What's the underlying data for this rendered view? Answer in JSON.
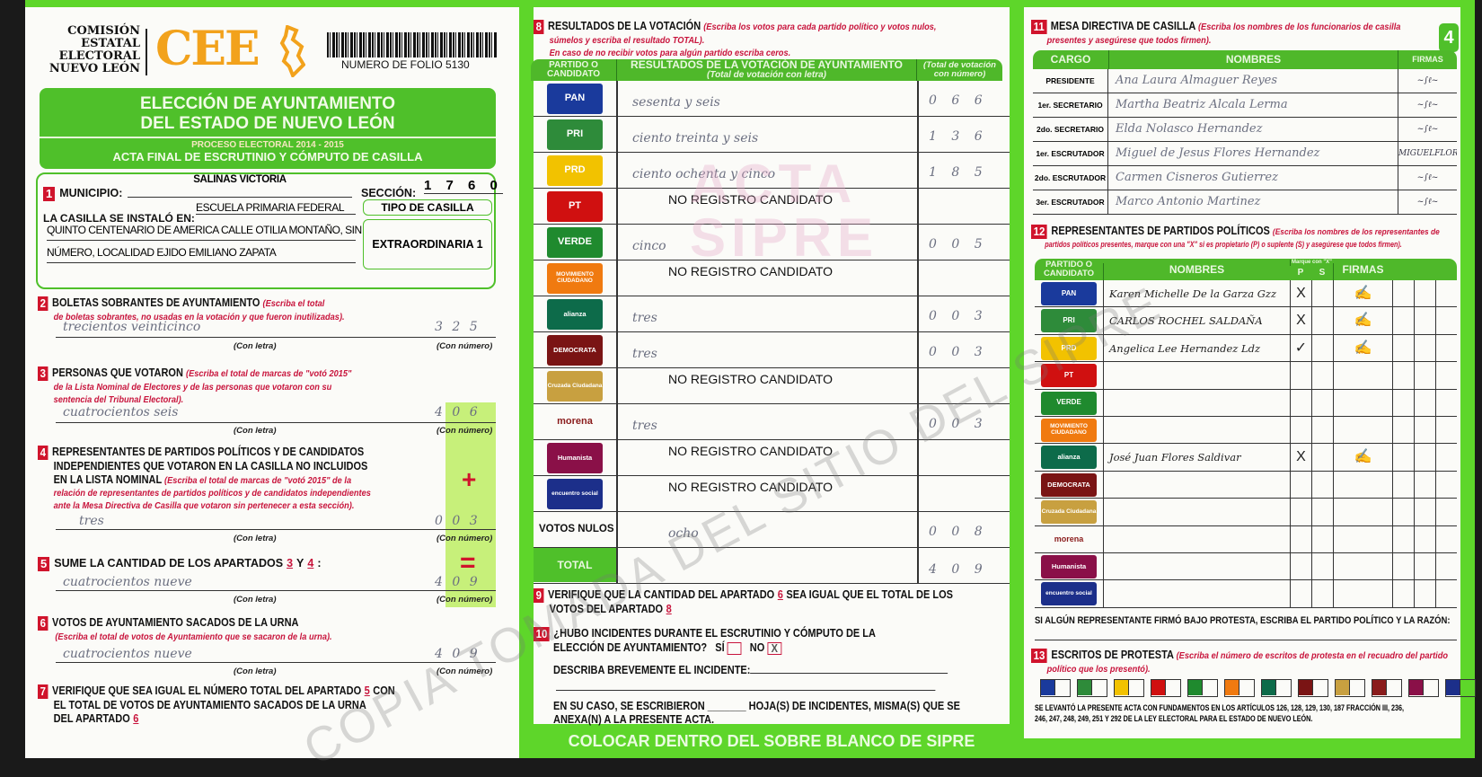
{
  "header": {
    "org": [
      "COMISIÓN",
      "ESTATAL",
      "ELECTORAL",
      "NUEVO LEÓN"
    ],
    "logo": "CEE",
    "folio": "NUMERO DE FOLIO 5130",
    "badge": "4"
  },
  "banner": {
    "title1": "ELECCIÓN DE AYUNTAMIENTO",
    "title2": "DEL ESTADO DE NUEVO LEÓN",
    "process": "PROCESO ELECTORAL 2014 - 2015",
    "acta": "ACTA FINAL DE ESCRUTINIO Y CÓMPUTO DE CASILLA"
  },
  "s1": {
    "num": "1",
    "municipio_label": "MUNICIPIO:",
    "municipio": "SALINAS VICTORIA",
    "seccion_label": "SECCIÓN:",
    "seccion": "1 7 6 0",
    "installed_label": "LA CASILLA SE INSTALÓ EN:",
    "address1": "ESCUELA PRIMARIA FEDERAL",
    "address2": "QUINTO CENTENARIO DE AMERICA CALLE OTILIA MONTAÑO, SIN",
    "address3": "NÚMERO, LOCALIDAD EJIDO EMILIANO ZAPATA",
    "tipo_label": "TIPO DE CASILLA",
    "tipo": "EXTRAORDINARIA 1"
  },
  "labels": {
    "con_letra": "(Con letra)",
    "con_numero": "(Con número)",
    "plus": "+",
    "equals": "="
  },
  "s2": {
    "num": "2",
    "title": "BOLETAS SOBRANTES DE AYUNTAMIENTO",
    "inst1": "(Escriba el total",
    "inst2": "de boletas sobrantes, no usadas en la votación y que fueron inutilizadas).",
    "letra": "trecientos veinticinco",
    "numero": "3 2 5"
  },
  "s3": {
    "num": "3",
    "title": "PERSONAS QUE VOTARON",
    "inst1": "(Escriba el total de marcas de \"votó 2015\"",
    "inst2": "de la Lista Nominal de Electores y de las personas que votaron con su",
    "inst3": "sentencia del Tribunal Electoral).",
    "letra": "cuatrocientos seis",
    "numero": "4 0 6"
  },
  "s4": {
    "num": "4",
    "title1": "REPRESENTANTES DE PARTIDOS POLÍTICOS Y DE CANDIDATOS",
    "title2": "INDEPENDIENTES QUE VOTARON EN LA CASILLA NO INCLUIDOS",
    "title3": "EN LA LISTA NOMINAL",
    "inst1": "(Escriba el total de marcas de \"votó 2015\" de la",
    "inst2": "relación de representantes de partidos políticos y de candidatos independientes",
    "inst3": "ante la Mesa Directiva de Casilla que votaron sin pertenecer a esta sección).",
    "letra": "tres",
    "numero": "0 0 3"
  },
  "s5": {
    "num": "5",
    "title": "SUME LA CANTIDAD DE LOS APARTADOS",
    "a": "3",
    "y": "Y",
    "b": "4",
    "letra": "cuatrocientos nueve",
    "numero": "4 0 9"
  },
  "s6": {
    "num": "6",
    "title": "VOTOS DE AYUNTAMIENTO SACADOS DE LA URNA",
    "inst": "(Escriba el total de votos de Ayuntamiento que se sacaron de la urna).",
    "letra": "cuatrocientos nueve",
    "numero": "4 0 9"
  },
  "s7": {
    "num": "7",
    "t1": "VERIFIQUE QUE SEA IGUAL EL NÚMERO TOTAL DEL APARTADO",
    "a": "5",
    "t1b": "CON",
    "t2": "EL TOTAL DE VOTOS DE AYUNTAMIENTO SACADOS DE LA URNA",
    "t3": "DEL APARTADO",
    "b": "6"
  },
  "s8": {
    "num": "8",
    "title": "RESULTADOS DE LA VOTACIÓN",
    "inst1": "(Escriba los votos para cada partido político y votos nulos,",
    "inst2": "súmelos y escriba el resultado TOTAL).",
    "inst3": "En caso de no recibir votos para algún partido escriba ceros.",
    "col1": "PARTIDO O CANDIDATO",
    "col2": "RESULTADOS DE LA VOTACIÓN DE AYUNTAMIENTO",
    "col2sub": "(Total de votación con letra)",
    "col3": "(Total de votación con número)",
    "rows": [
      {
        "party": "PAN",
        "color": "#1a3a9c",
        "letra": "sesenta y seis",
        "numero": "0 6 6"
      },
      {
        "party": "PRI",
        "color": "#2e8b3a",
        "letra": "ciento treinta y seis",
        "numero": "1 3 6"
      },
      {
        "party": "PRD",
        "color": "#f2c200",
        "letra": "ciento ochenta y cinco",
        "numero": "1 8 5"
      },
      {
        "party": "PT",
        "color": "#d01010",
        "letra": "NO REGISTRO CANDIDATO",
        "numero": ""
      },
      {
        "party": "VERDE",
        "color": "#1f8a2e",
        "letra": "cinco",
        "numero": "0 0 5"
      },
      {
        "party": "MOVIMIENTO CIUDADANO",
        "color": "#f07a10",
        "letra": "NO REGISTRO CANDIDATO",
        "numero": ""
      },
      {
        "party": "alianza",
        "color": "#0d6b4a",
        "letra": "tres",
        "numero": "0 0 3"
      },
      {
        "party": "DEMOCRATA",
        "color": "#7a1414",
        "letra": "tres",
        "numero": "0 0 3"
      },
      {
        "party": "Cruzada Ciudadana",
        "color": "#c8a040",
        "letra": "NO REGISTRO CANDIDATO",
        "numero": ""
      },
      {
        "party": "morena",
        "color": "#8a1c1c",
        "letra": "tres",
        "numero": "0 0 3"
      },
      {
        "party": "Humanista",
        "color": "#8a1048",
        "letra": "NO REGISTRO CANDIDATO",
        "numero": ""
      },
      {
        "party": "encuentro social",
        "color": "#1c2f8a",
        "letra": "NO REGISTRO CANDIDATO",
        "numero": ""
      }
    ],
    "nulos_label": "VOTOS NULOS",
    "nulos_letra": "ocho",
    "nulos_numero": "0 0 8",
    "total_label": "TOTAL",
    "total_numero": "4 0 9"
  },
  "s9": {
    "num": "9",
    "t1": "VERIFIQUE QUE LA CANTIDAD DEL APARTADO",
    "a": "6",
    "t1b": "SEA IGUAL QUE EL TOTAL DE LOS",
    "t2": "VOTOS DEL APARTADO",
    "b": "8"
  },
  "s10": {
    "num": "10",
    "t1": "¿HUBO INCIDENTES DURANTE EL ESCRUTINIO Y CÓMPUTO DE LA",
    "t2": "ELECCIÓN DE AYUNTAMIENTO?",
    "si": "SÍ",
    "no": "NO",
    "no_mark": "X",
    "describe": "DESCRIBA BREVEMENTE EL INCIDENTE:",
    "hojas1": "EN SU CASO, SE ESCRIBIERON _______ HOJA(S) DE INCIDENTES, MISMA(S) QUE SE",
    "hojas2": "ANEXA(N) A LA PRESENTE ACTA."
  },
  "footer": "COLOCAR DENTRO DEL SOBRE BLANCO DE SIPRE",
  "s11": {
    "num": "11",
    "title": "MESA DIRECTIVA DE CASILLA",
    "inst1": "(Escriba los nombres de los funcionarios de casilla",
    "inst2": "presentes y asegúrese que todos firmen).",
    "col_cargo": "CARGO",
    "col_nombres": "NOMBRES",
    "col_firmas": "FIRMAS",
    "rows": [
      {
        "cargo": "PRESIDENTE",
        "nombre": "Ana Laura Almaguer Reyes",
        "firma": "signed"
      },
      {
        "cargo": "1er. SECRETARIO",
        "nombre": "Martha Beatriz Alcala Lerma",
        "firma": "signed"
      },
      {
        "cargo": "2do. SECRETARIO",
        "nombre": "Elda Nolasco Hernandez",
        "firma": "signed"
      },
      {
        "cargo": "1er. ESCRUTADOR",
        "nombre": "Miguel de Jesus Flores Hernandez",
        "firma": "MIGUELFLORES"
      },
      {
        "cargo": "2do. ESCRUTADOR",
        "nombre": "Carmen Cisneros Gutierrez",
        "firma": "signed"
      },
      {
        "cargo": "3er. ESCRUTADOR",
        "nombre": "Marco Antonio Martinez",
        "firma": "signed"
      }
    ]
  },
  "s12": {
    "num": "12",
    "title": "REPRESENTANTES DE PARTIDOS POLÍTICOS",
    "inst1": "(Escriba los nombres de los representantes de",
    "inst2": "partidos políticos presentes, marque con una \"X\" si es propietario (P) o suplente (S) y asegúrese que todos firmen).",
    "col_partido": "PARTIDO O CANDIDATO",
    "col_nombres": "NOMBRES",
    "marque": "Marque con \"X\"",
    "p": "P",
    "s": "S",
    "col_firmas": "FIRMAS",
    "rows": [
      {
        "party": "PAN",
        "nombre": "Karen Michelle De la Garza Gzz",
        "p": "X",
        "s": "",
        "firma": "signed"
      },
      {
        "party": "PRI",
        "nombre": "CARLOS ROCHEL SALDAÑA",
        "p": "X",
        "s": "",
        "firma": "signed"
      },
      {
        "party": "PRD",
        "nombre": "Angelica Lee Hernandez Ldz",
        "p": "✓",
        "s": "",
        "firma": "signed"
      },
      {
        "party": "PT",
        "nombre": "",
        "p": "",
        "s": "",
        "firma": ""
      },
      {
        "party": "VERDE",
        "nombre": "",
        "p": "",
        "s": "",
        "firma": ""
      },
      {
        "party": "MOVIMIENTO CIUDADANO",
        "nombre": "",
        "p": "",
        "s": "",
        "firma": ""
      },
      {
        "party": "alianza",
        "nombre": "José Juan Flores Saldivar",
        "p": "X",
        "s": "",
        "firma": "signed"
      },
      {
        "party": "DEMOCRATA",
        "nombre": "",
        "p": "",
        "s": "",
        "firma": ""
      },
      {
        "party": "Cruzada Ciudadana",
        "nombre": "",
        "p": "",
        "s": "",
        "firma": ""
      },
      {
        "party": "morena",
        "nombre": "",
        "p": "",
        "s": "",
        "firma": ""
      },
      {
        "party": "Humanista",
        "nombre": "",
        "p": "",
        "s": "",
        "firma": ""
      },
      {
        "party": "encuentro social",
        "nombre": "",
        "p": "",
        "s": "",
        "firma": ""
      }
    ],
    "protesta": "SI ALGÚN REPRESENTANTE FIRMÓ BAJO PROTESTA, ESCRIBA EL PARTIDO POLÍTICO Y LA RAZÓN:"
  },
  "s13": {
    "num": "13",
    "title": "ESCRITOS DE PROTESTA",
    "inst1": "(Escriba el número de escritos de protesta en el recuadro del partido",
    "inst2": "político que los presentó).",
    "legal1": "SE LEVANTÓ LA PRESENTE ACTA CON FUNDAMENTOS EN LOS ARTÍCULOS 126, 128, 129, 130, 187 FRACCIÓN III, 236,",
    "legal2": "246, 247, 248, 249, 251 Y 292 DE LA LEY ELECTORAL PARA EL ESTADO DE NUEVO LEÓN."
  },
  "watermark": {
    "diag": "COPIA TOMADA DEL SITIO DEL SIPRE",
    "stamp1": "ACTA",
    "stamp2": "SIPRE"
  },
  "colors": {
    "green": "#5ed62a",
    "red": "#d0142c",
    "orange": "#f2a21c"
  }
}
